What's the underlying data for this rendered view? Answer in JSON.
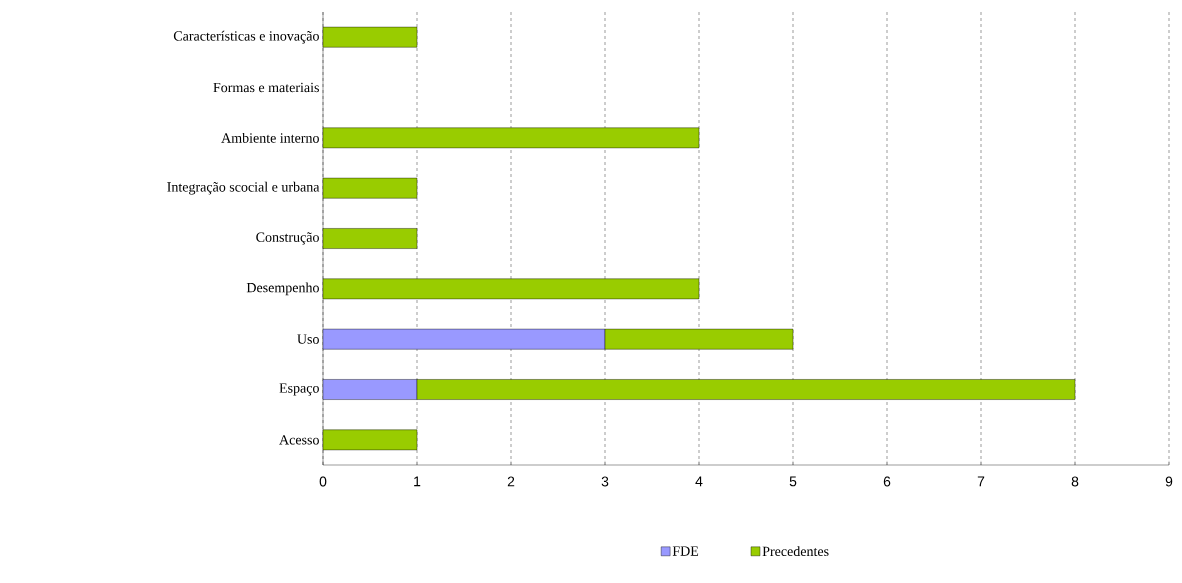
{
  "chart_data": {
    "type": "bar",
    "orientation": "horizontal",
    "stacked": true,
    "categories": [
      "Características e inovação",
      "Formas e materiais",
      "Ambiente interno",
      "Integração scocial e urbana",
      "Construção",
      "Desempenho",
      "Uso",
      "Espaço",
      "Acesso"
    ],
    "series": [
      {
        "name": "FDE",
        "color": "#9999ff",
        "values": [
          null,
          null,
          null,
          null,
          null,
          null,
          3,
          1,
          null
        ]
      },
      {
        "name": "Precedentes",
        "color": "#99cc00",
        "values": [
          1,
          null,
          4,
          1,
          1,
          4,
          2,
          7,
          1
        ]
      }
    ],
    "xlim": [
      0,
      9
    ],
    "xticks": [
      0,
      1,
      2,
      3,
      4,
      5,
      6,
      7,
      8,
      9
    ],
    "grid": "x",
    "legend": "bottom"
  }
}
